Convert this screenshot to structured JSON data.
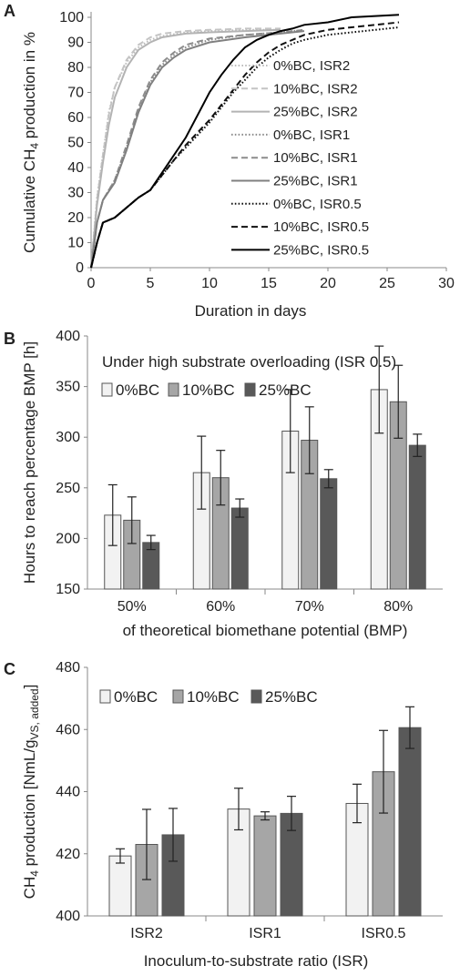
{
  "chart_data": [
    {
      "panel": "A",
      "type": "line",
      "xlabel": "Duration in days",
      "ylabel": "Cumulative CH4 production in %",
      "ylabel_parts": {
        "pre": "Cumulative CH",
        "sub": "4",
        "post": " production in %"
      },
      "xlim": [
        0,
        30
      ],
      "ylim": [
        0,
        100
      ],
      "xticks": [
        "0",
        "5",
        "10",
        "15",
        "20",
        "25",
        "30"
      ],
      "yticks": [
        "0",
        "10",
        "20",
        "30",
        "40",
        "50",
        "60",
        "70",
        "80",
        "90",
        "100"
      ],
      "legend_position": "right",
      "series": [
        {
          "name": "0%BC, ISR2",
          "color": "#bdbdbd",
          "style": "dotted",
          "points": [
            [
              0,
              0
            ],
            [
              0.5,
              28
            ],
            [
              1,
              45
            ],
            [
              1.5,
              62
            ],
            [
              2,
              72
            ],
            [
              3,
              82
            ],
            [
              4,
              88
            ],
            [
              5,
              91
            ],
            [
              6,
              92.5
            ],
            [
              8,
              94
            ],
            [
              10,
              94.5
            ],
            [
              13,
              95
            ],
            [
              16,
              95
            ]
          ]
        },
        {
          "name": "10%BC, ISR2",
          "color": "#c4c4c4",
          "style": "dashed",
          "points": [
            [
              0,
              0
            ],
            [
              0.5,
              27
            ],
            [
              1,
              45
            ],
            [
              1.5,
              61
            ],
            [
              2,
              72
            ],
            [
              3,
              83
            ],
            [
              4,
              89
            ],
            [
              5,
              92
            ],
            [
              6,
              93.5
            ],
            [
              8,
              94.5
            ],
            [
              10,
              95
            ],
            [
              13,
              95.5
            ],
            [
              16,
              95.5
            ]
          ]
        },
        {
          "name": "25%BC, ISR2",
          "color": "#b3b3b3",
          "style": "solid",
          "points": [
            [
              0,
              0
            ],
            [
              0.5,
              25
            ],
            [
              1,
              42
            ],
            [
              1.5,
              57
            ],
            [
              2,
              68
            ],
            [
              3,
              80
            ],
            [
              4,
              87
            ],
            [
              5,
              90
            ],
            [
              6,
              92
            ],
            [
              8,
              93.5
            ],
            [
              10,
              94
            ],
            [
              13,
              94.5
            ],
            [
              16,
              95
            ]
          ]
        },
        {
          "name": "0%BC, ISR1",
          "color": "#8c8c8c",
          "style": "dotted",
          "points": [
            [
              0,
              0
            ],
            [
              0.5,
              18
            ],
            [
              1,
              27
            ],
            [
              2,
              35
            ],
            [
              3,
              48
            ],
            [
              4,
              63
            ],
            [
              5,
              74
            ],
            [
              6,
              81
            ],
            [
              7,
              85
            ],
            [
              8,
              88
            ],
            [
              10,
              91
            ],
            [
              13,
              93
            ],
            [
              16,
              94
            ],
            [
              18,
              95
            ]
          ]
        },
        {
          "name": "10%BC, ISR1",
          "color": "#8c8c8c",
          "style": "dashed",
          "points": [
            [
              0,
              0
            ],
            [
              0.5,
              18
            ],
            [
              1,
              27
            ],
            [
              2,
              35
            ],
            [
              3,
              49
            ],
            [
              4,
              64
            ],
            [
              5,
              75
            ],
            [
              6,
              82
            ],
            [
              7,
              86
            ],
            [
              8,
              89
            ],
            [
              10,
              91.5
            ],
            [
              13,
              93
            ],
            [
              16,
              94
            ],
            [
              18,
              95
            ]
          ]
        },
        {
          "name": "25%BC, ISR1",
          "color": "#808080",
          "style": "solid",
          "points": [
            [
              0,
              0
            ],
            [
              0.5,
              18
            ],
            [
              1,
              27
            ],
            [
              2,
              34
            ],
            [
              3,
              47
            ],
            [
              4,
              62
            ],
            [
              5,
              73
            ],
            [
              6,
              80
            ],
            [
              7,
              84
            ],
            [
              8,
              87
            ],
            [
              10,
              90
            ],
            [
              13,
              92
            ],
            [
              16,
              93.5
            ],
            [
              18,
              94.5
            ]
          ]
        },
        {
          "name": "0%BC, ISR0.5",
          "color": "#111111",
          "style": "dotted",
          "points": [
            [
              0,
              0
            ],
            [
              0.5,
              10
            ],
            [
              1,
              18
            ],
            [
              2,
              20
            ],
            [
              3,
              24
            ],
            [
              4,
              28
            ],
            [
              5,
              31
            ],
            [
              6,
              37
            ],
            [
              7,
              43
            ],
            [
              8,
              48
            ],
            [
              9,
              53
            ],
            [
              10,
              58
            ],
            [
              11,
              64
            ],
            [
              12,
              70
            ],
            [
              13,
              75
            ],
            [
              14,
              80
            ],
            [
              15,
              84
            ],
            [
              16,
              87
            ],
            [
              17,
              89.5
            ],
            [
              18,
              91
            ],
            [
              20,
              93
            ],
            [
              22,
              94
            ],
            [
              24,
              95
            ],
            [
              26,
              96
            ]
          ]
        },
        {
          "name": "10%BC, ISR0.5",
          "color": "#111111",
          "style": "dashed",
          "points": [
            [
              0,
              0
            ],
            [
              0.5,
              10
            ],
            [
              1,
              18
            ],
            [
              2,
              20
            ],
            [
              3,
              24
            ],
            [
              4,
              28
            ],
            [
              5,
              31
            ],
            [
              6,
              37
            ],
            [
              7,
              43
            ],
            [
              8,
              49
            ],
            [
              9,
              54
            ],
            [
              10,
              59
            ],
            [
              11,
              65
            ],
            [
              12,
              71
            ],
            [
              13,
              77
            ],
            [
              14,
              82
            ],
            [
              15,
              86
            ],
            [
              16,
              89
            ],
            [
              17,
              91
            ],
            [
              18,
              93
            ],
            [
              20,
              95
            ],
            [
              22,
              96
            ],
            [
              24,
              97
            ],
            [
              26,
              98
            ]
          ]
        },
        {
          "name": "25%BC, ISR0.5",
          "color": "#000000",
          "style": "solid",
          "points": [
            [
              0,
              0
            ],
            [
              0.5,
              10
            ],
            [
              1,
              18
            ],
            [
              2,
              20
            ],
            [
              3,
              24
            ],
            [
              4,
              28
            ],
            [
              5,
              31
            ],
            [
              6,
              38
            ],
            [
              7,
              45
            ],
            [
              8,
              52
            ],
            [
              9,
              61
            ],
            [
              10,
              70
            ],
            [
              11,
              77
            ],
            [
              12,
              83
            ],
            [
              13,
              88
            ],
            [
              14,
              91
            ],
            [
              15,
              93
            ],
            [
              16,
              94.5
            ],
            [
              17,
              95.5
            ],
            [
              18,
              97
            ],
            [
              20,
              98
            ],
            [
              22,
              100
            ],
            [
              24,
              100.5
            ],
            [
              26,
              101
            ]
          ]
        }
      ]
    },
    {
      "panel": "B",
      "type": "bar",
      "title": "Under high substrate overloading (ISR 0.5)",
      "xlabel": "of theoretical biomethane potential (BMP)",
      "ylabel": "Hours to reach percentage BMP [h]",
      "ylim": [
        150,
        400
      ],
      "yticks": [
        "150",
        "200",
        "250",
        "300",
        "350",
        "400"
      ],
      "categories": [
        "50%",
        "60%",
        "70%",
        "80%"
      ],
      "legend_position": "top-left",
      "series": [
        {
          "name": "0%BC",
          "color": "#f2f2f2",
          "values": [
            223,
            265,
            306,
            347
          ],
          "errors": [
            30,
            36,
            41,
            43
          ]
        },
        {
          "name": "10%BC",
          "color": "#a6a6a6",
          "values": [
            218,
            260,
            297,
            335
          ],
          "errors": [
            23,
            27,
            33,
            36
          ]
        },
        {
          "name": "25%BC",
          "color": "#595959",
          "values": [
            196,
            230,
            259,
            292
          ],
          "errors": [
            7,
            9,
            9,
            11
          ]
        }
      ]
    },
    {
      "panel": "C",
      "type": "bar",
      "xlabel": "Inoculum-to-substrate ratio (ISR)",
      "ylabel": "CH4 production [NmL/gVS, added]",
      "ylabel_parts": {
        "a": "CH",
        "a_sub": "4",
        "b": " production [NmL/g",
        "b_sub": "VS, added",
        "c": "]"
      },
      "ylim": [
        400,
        480
      ],
      "yticks": [
        "400",
        "420",
        "440",
        "460",
        "480"
      ],
      "categories": [
        "ISR2",
        "ISR1",
        "ISR0.5"
      ],
      "legend_position": "top-left",
      "series": [
        {
          "name": "0%BC",
          "color": "#f2f2f2",
          "values": [
            419.3,
            434.4,
            436.2
          ],
          "errors": [
            2.3,
            6.7,
            6.2
          ]
        },
        {
          "name": "10%BC",
          "color": "#a6a6a6",
          "values": [
            423.0,
            432.2,
            446.4
          ],
          "errors": [
            11.3,
            1.3,
            13.3
          ]
        },
        {
          "name": "25%BC",
          "color": "#595959",
          "values": [
            426.1,
            433.0,
            460.6
          ],
          "errors": [
            8.5,
            5.5,
            6.7
          ]
        }
      ]
    }
  ],
  "panel_labels": [
    "A",
    "B",
    "C"
  ]
}
